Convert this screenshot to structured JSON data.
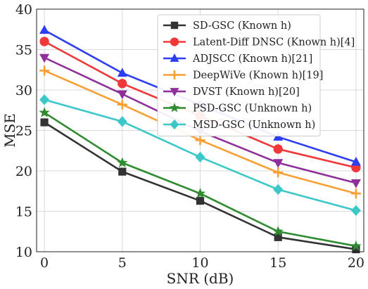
{
  "chart_data": {
    "type": "line",
    "xlabel": "SNR (dB)",
    "ylabel": "MSE",
    "xlim": [
      -0.5,
      20.5
    ],
    "ylim": [
      10,
      40
    ],
    "xticks": [
      0,
      5,
      10,
      15,
      20
    ],
    "yticks": [
      10,
      15,
      20,
      25,
      30,
      35,
      40
    ],
    "grid": true,
    "legend_position": "top-right",
    "series": [
      {
        "name": "SD-GSC (Known h)",
        "color": "#333333",
        "marker": "square",
        "x": [
          0,
          5,
          10,
          15,
          20
        ],
        "values": [
          26.0,
          19.9,
          16.3,
          11.8,
          10.3
        ]
      },
      {
        "name": "Latent-Diff DNSC (Known h)[4]",
        "color": "#f03838",
        "marker": "circle",
        "x": [
          0,
          5,
          10,
          15,
          20
        ],
        "values": [
          36.0,
          30.8,
          26.8,
          22.7,
          20.4
        ]
      },
      {
        "name": "ADJSCC (Known h)[21]",
        "color": "#2d3df2",
        "marker": "triangle-up",
        "x": [
          0,
          5,
          10,
          15,
          20
        ],
        "values": [
          37.4,
          32.1,
          28.2,
          24.2,
          21.1
        ]
      },
      {
        "name": "DeepWiVe (Known h)[19]",
        "color": "#f9a035",
        "marker": "plus",
        "x": [
          0,
          5,
          10,
          15,
          20
        ],
        "values": [
          32.4,
          28.2,
          23.8,
          19.8,
          17.2
        ]
      },
      {
        "name": "DVST (Known h)[20]",
        "color": "#8e2f9a",
        "marker": "triangle-down",
        "x": [
          0,
          5,
          10,
          15,
          20
        ],
        "values": [
          34.0,
          29.5,
          24.9,
          21.0,
          18.5
        ]
      },
      {
        "name": "PSD-GSC (Unknown h)",
        "color": "#2e8b2e",
        "marker": "star",
        "x": [
          0,
          5,
          10,
          15,
          20
        ],
        "values": [
          27.2,
          21.0,
          17.2,
          12.5,
          10.7
        ]
      },
      {
        "name": "MSD-GSC (Unknown h)",
        "color": "#3cc8c8",
        "marker": "diamond",
        "x": [
          0,
          5,
          10,
          15,
          20
        ],
        "values": [
          28.8,
          26.1,
          21.7,
          17.7,
          15.1
        ]
      }
    ]
  }
}
